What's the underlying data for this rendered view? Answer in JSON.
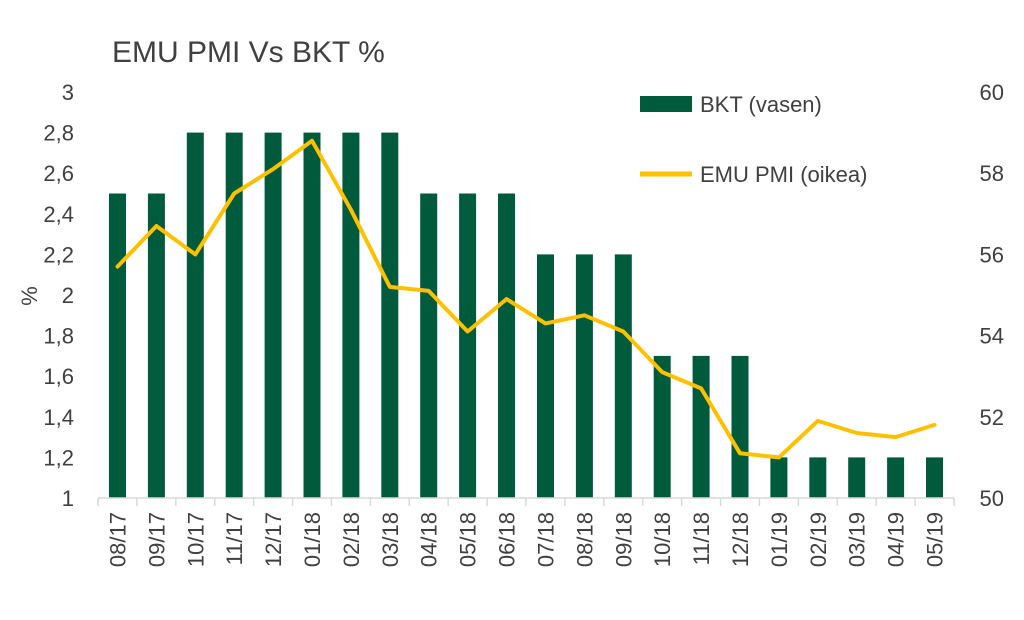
{
  "chart_data": {
    "type": "bar",
    "title": "EMU PMI Vs BKT %",
    "ylabel": "%",
    "y_ticks": [
      "1",
      "1,2",
      "1,4",
      "1,6",
      "1,8",
      "2",
      "2,2",
      "2,4",
      "2,6",
      "2,8",
      "3"
    ],
    "ylim": [
      1,
      3
    ],
    "y2_ticks": [
      "50",
      "52",
      "54",
      "56",
      "58",
      "60"
    ],
    "y2lim": [
      50,
      60
    ],
    "grid": false,
    "legend_position": "top-right",
    "categories": [
      "08/17",
      "09/17",
      "10/17",
      "11/17",
      "12/17",
      "01/18",
      "02/18",
      "03/18",
      "04/18",
      "05/18",
      "06/18",
      "07/18",
      "08/18",
      "09/18",
      "10/18",
      "11/18",
      "12/18",
      "01/19",
      "02/19",
      "03/19",
      "04/19",
      "05/19"
    ],
    "series": [
      {
        "name": "BKT (vasen)",
        "type": "bar",
        "axis": "left",
        "color": "#005a3c",
        "values": [
          2.5,
          2.5,
          2.8,
          2.8,
          2.8,
          2.8,
          2.8,
          2.8,
          2.5,
          2.5,
          2.5,
          2.2,
          2.2,
          2.2,
          1.7,
          1.7,
          1.7,
          1.2,
          1.2,
          1.2,
          1.2,
          1.2
        ]
      },
      {
        "name": "EMU PMI (oikea)",
        "type": "line",
        "axis": "right",
        "color": "#ffc000",
        "values": [
          55.7,
          56.7,
          56.0,
          57.5,
          58.1,
          58.8,
          57.1,
          55.2,
          55.1,
          54.1,
          54.9,
          54.3,
          54.5,
          54.1,
          53.1,
          52.7,
          51.1,
          51.0,
          51.9,
          51.6,
          51.5,
          51.8
        ]
      }
    ]
  }
}
